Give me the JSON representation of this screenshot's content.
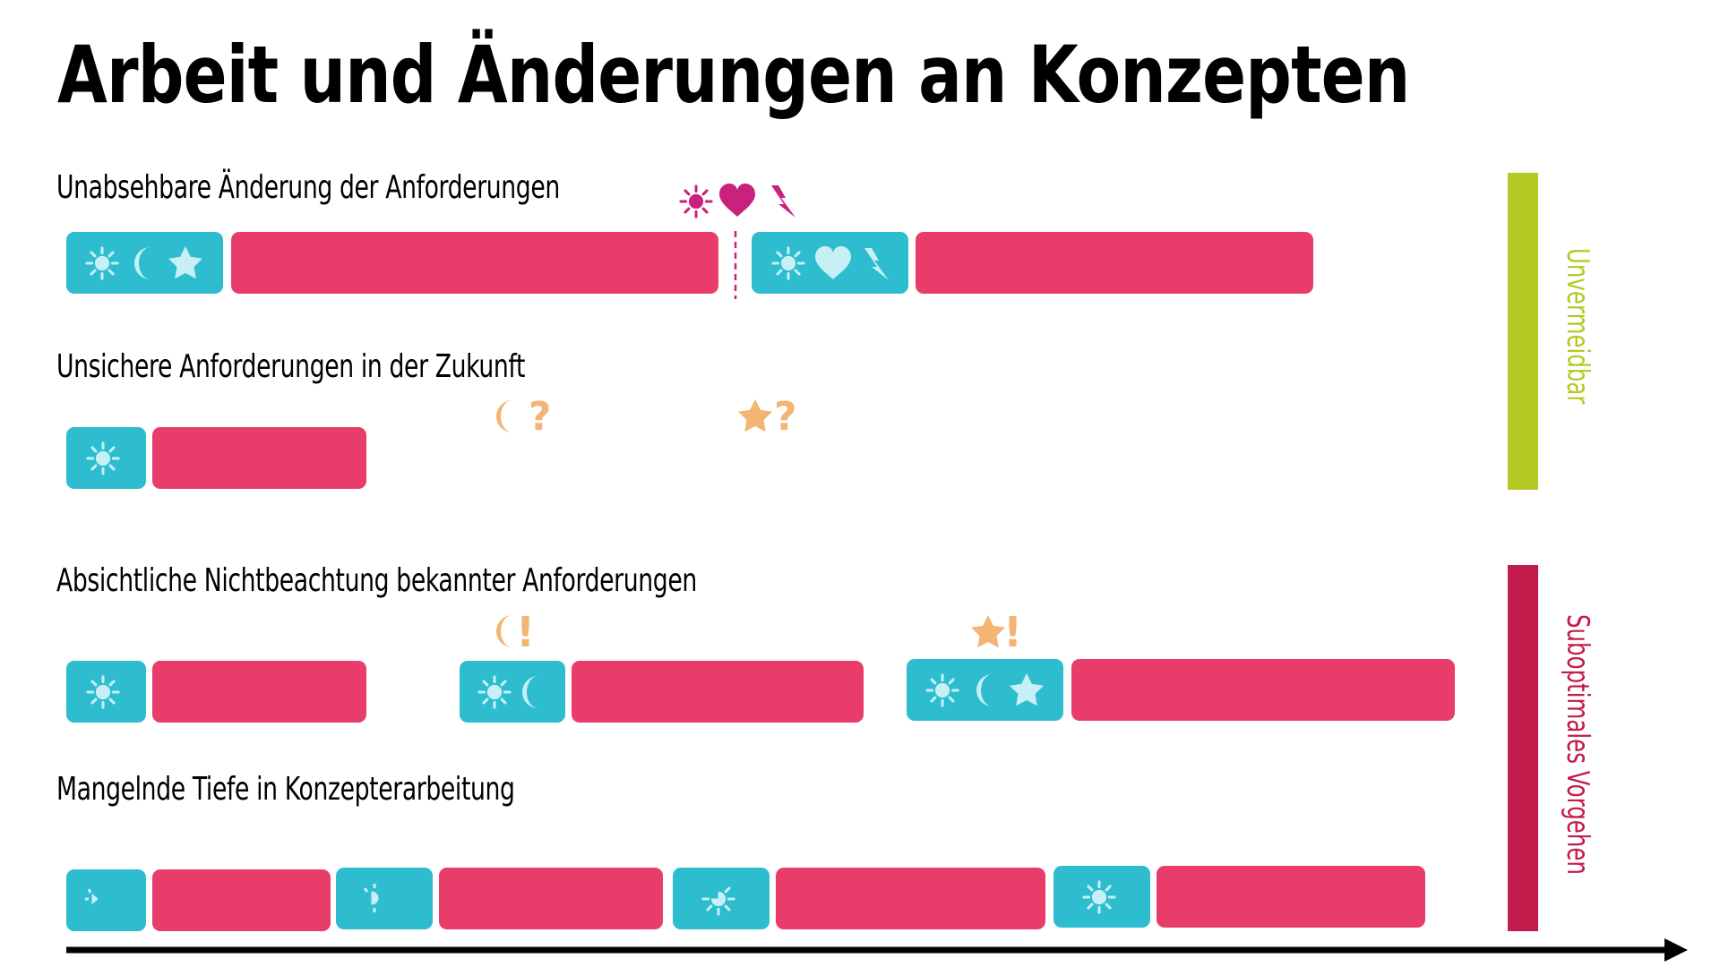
{
  "title": "Arbeit und Änderungen an Konzepten",
  "colors": {
    "concept_block": "#2dbdcf",
    "work_bar": "#e83d6b",
    "change_marker": "#c9217e",
    "uncertain_marker": "#f3b474",
    "unavoidable": "#b5c924",
    "suboptimal": "#c11c4b",
    "axis": "#000000",
    "icon_light": "#c7f0f6"
  },
  "rows": [
    {
      "label": "Unabsehbare Änderung der Anforderungen"
    },
    {
      "label": "Unsichere Anforderungen in der Zukunft"
    },
    {
      "label": "Absichtliche Nichtbeachtung bekannter Anforderungen"
    },
    {
      "label": "Mangelnde Tiefe in Konzepterarbeitung"
    }
  ],
  "markers": {
    "uncertain_moon": "?",
    "uncertain_star": "?",
    "known_moon": "!",
    "known_star": "!"
  },
  "categories": {
    "unavoidable": "Unvermeidbar",
    "suboptimal": "Suboptimales Vorgehen"
  },
  "icons": [
    "sun-icon",
    "moon-icon",
    "star-icon",
    "heart-icon",
    "lightning-icon",
    "question-mark",
    "exclamation-mark",
    "axis-arrow"
  ]
}
